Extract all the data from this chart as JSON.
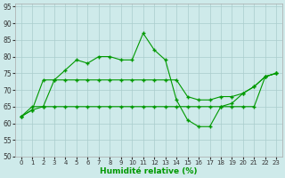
{
  "xlabel": "Humidité relative (%)",
  "background_color": "#ceeaea",
  "grid_color": "#aacccc",
  "line_color": "#009900",
  "xlim": [
    -0.5,
    23.5
  ],
  "ylim": [
    50,
    96
  ],
  "xticks": [
    0,
    1,
    2,
    3,
    4,
    5,
    6,
    7,
    8,
    9,
    10,
    11,
    12,
    13,
    14,
    15,
    16,
    17,
    18,
    19,
    20,
    21,
    22,
    23
  ],
  "yticks": [
    50,
    55,
    60,
    65,
    70,
    75,
    80,
    85,
    90,
    95
  ],
  "s1_x": [
    0,
    1,
    2,
    3,
    4,
    5,
    6,
    7,
    8,
    9,
    10,
    11,
    12,
    13,
    14,
    15,
    16,
    17,
    18,
    19,
    20,
    21,
    22,
    23
  ],
  "s1_y": [
    62,
    64,
    65,
    73,
    76,
    79,
    78,
    80,
    80,
    79,
    79,
    87,
    82,
    79,
    67,
    61,
    59,
    59,
    65,
    66,
    69,
    71,
    74,
    75
  ],
  "s2_x": [
    0,
    1,
    2,
    3,
    4,
    5,
    6,
    7,
    8,
    9,
    10,
    11,
    12,
    13,
    14,
    15,
    16,
    17,
    18,
    19,
    20,
    21,
    22,
    23
  ],
  "s2_y": [
    62,
    64,
    73,
    73,
    73,
    73,
    73,
    73,
    73,
    73,
    73,
    73,
    73,
    73,
    73,
    68,
    67,
    67,
    68,
    68,
    69,
    71,
    74,
    75
  ],
  "s3_x": [
    0,
    1,
    2,
    3,
    4,
    5,
    6,
    7,
    8,
    9,
    10,
    11,
    12,
    13,
    14,
    15,
    16,
    17,
    18,
    19,
    20,
    21,
    22,
    23
  ],
  "s3_y": [
    62,
    65,
    65,
    65,
    65,
    65,
    65,
    65,
    65,
    65,
    65,
    65,
    65,
    65,
    65,
    65,
    65,
    65,
    65,
    65,
    65,
    65,
    74,
    75
  ]
}
